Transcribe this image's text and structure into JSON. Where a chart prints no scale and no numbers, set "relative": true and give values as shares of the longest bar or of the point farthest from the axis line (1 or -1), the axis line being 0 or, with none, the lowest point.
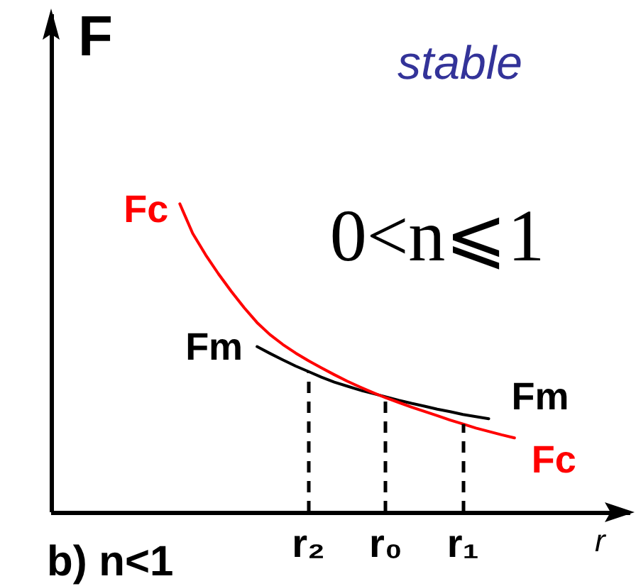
{
  "chart_data": {
    "type": "line",
    "relative": true,
    "marker": "none",
    "categories": [
      null,
      null,
      null,
      null,
      null,
      null,
      null,
      null,
      null,
      null,
      null,
      null,
      null,
      null,
      null,
      null,
      null,
      null,
      null,
      null,
      "r₂",
      null,
      null,
      null,
      null,
      null,
      "r₀",
      null,
      null,
      null,
      null,
      null,
      "r₁",
      null,
      null,
      null,
      null,
      null,
      null,
      null,
      null,
      null,
      null,
      null,
      null,
      null
    ],
    "series": [
      {
        "name": "Fc",
        "color": "#ff0000",
        "values": [
          null,
          null,
          null,
          null,
          null,
          null,
          null,
          null,
          null,
          null,
          1.0,
          0.904,
          0.835,
          0.773,
          0.716,
          0.663,
          0.615,
          0.576,
          0.544,
          0.516,
          0.491,
          0.468,
          0.446,
          0.425,
          0.406,
          0.388,
          0.371,
          0.356,
          0.341,
          0.327,
          0.313,
          0.299,
          0.286,
          0.273,
          0.262,
          0.251,
          0.241,
          null,
          null,
          null,
          null,
          null,
          null,
          null,
          null,
          null
        ]
      },
      {
        "name": "Fm",
        "color": "#000000",
        "values": [
          null,
          null,
          null,
          null,
          null,
          null,
          null,
          null,
          null,
          null,
          null,
          null,
          null,
          null,
          null,
          null,
          0.537,
          0.515,
          0.494,
          0.474,
          0.456,
          0.438,
          0.422,
          0.409,
          0.396,
          0.385,
          0.374,
          0.363,
          0.353,
          0.344,
          0.334,
          0.326,
          0.317,
          0.31,
          0.303,
          null,
          null,
          null,
          null,
          null,
          null,
          null,
          null,
          null,
          null,
          null
        ]
      }
    ],
    "ref_lines": [
      {
        "axis": "x",
        "value": "r₂",
        "color": "#000000",
        "line_style": "dashed"
      },
      {
        "axis": "x",
        "value": "r₀",
        "color": "#000000",
        "line_style": "dashed"
      },
      {
        "axis": "x",
        "value": "r₁",
        "color": "#000000",
        "line_style": "dashed"
      }
    ],
    "xlabel": "r",
    "ylabel": "F",
    "annotations": [
      "stable",
      "0<n⩽1",
      "b) n<1"
    ]
  }
}
